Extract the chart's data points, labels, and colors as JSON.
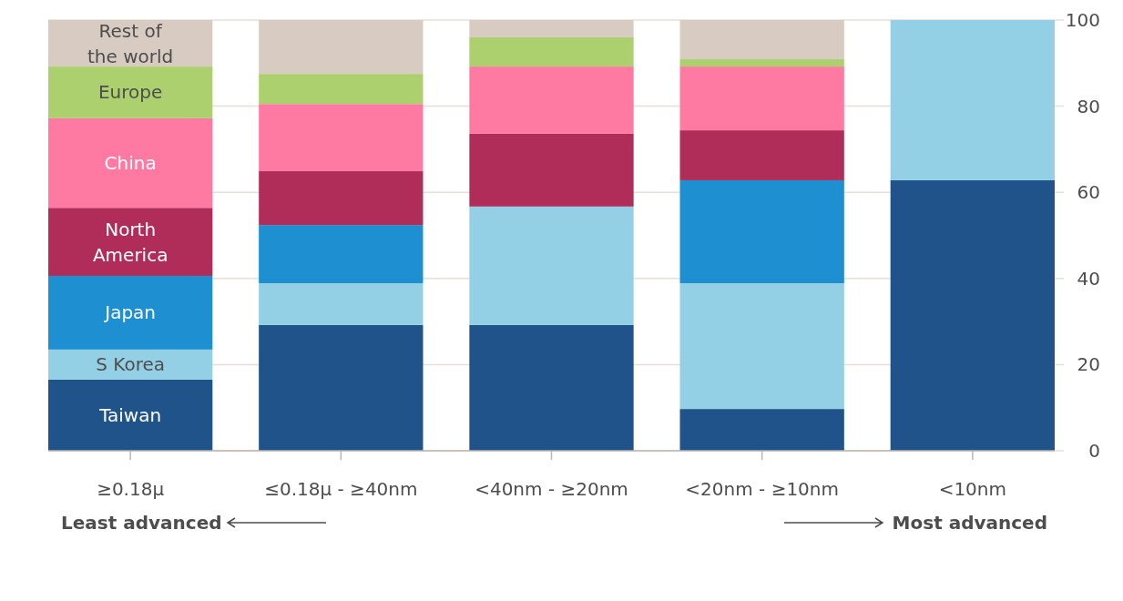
{
  "chart_data": {
    "type": "bar",
    "stacked": true,
    "categories": [
      "≥0.18μ",
      "≤0.18μ - ≥40nm",
      "<40nm - ≥20nm",
      "<20nm - ≥10nm",
      "<10nm"
    ],
    "series": [
      {
        "name": "Taiwan",
        "color": "#1f538a",
        "values": [
          16.5,
          29.2,
          29.2,
          9.7,
          62.8
        ]
      },
      {
        "name": "S Korea",
        "color": "#93d0e6",
        "values": [
          7,
          9.7,
          27.5,
          29.2,
          37.2
        ]
      },
      {
        "name": "Japan",
        "color": "#1e8fd0",
        "values": [
          17.1,
          13.5,
          0,
          23.9,
          0
        ]
      },
      {
        "name": "North America",
        "color": "#b02d5a",
        "values": [
          15.8,
          12.5,
          16.9,
          11.6,
          0
        ]
      },
      {
        "name": "China",
        "color": "#ff7aa3",
        "values": [
          20.8,
          15.6,
          15.6,
          14.8,
          0
        ]
      },
      {
        "name": "Europe",
        "color": "#acd06e",
        "values": [
          12,
          7,
          6.8,
          1.7,
          0
        ]
      },
      {
        "name": "Rest of the world",
        "color": "#d8ccc2",
        "values": [
          10.8,
          12.5,
          4,
          9.1,
          0
        ]
      }
    ],
    "ylim": [
      0,
      100
    ],
    "yticks": [
      0,
      20,
      40,
      60,
      80,
      100
    ],
    "grid": "y",
    "legend": false,
    "annotations": [
      "Least advanced",
      "Most advanced"
    ]
  }
}
